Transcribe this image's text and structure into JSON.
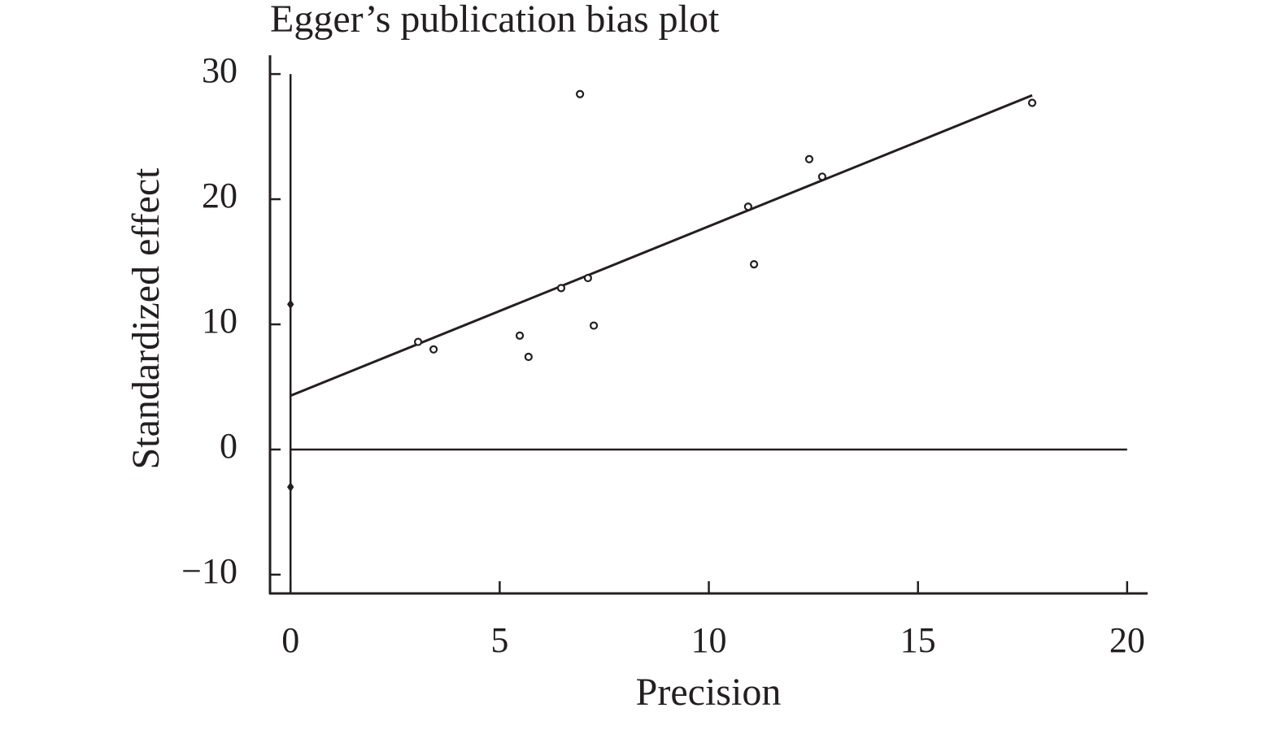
{
  "chart_data": {
    "type": "scatter",
    "title": "Egger’s publication bias plot",
    "x_label": "Precision",
    "y_label": "Standardized effect",
    "x": [
      3.05,
      3.42,
      5.48,
      5.69,
      6.47,
      6.92,
      7.11,
      7.25,
      10.94,
      11.08,
      12.4,
      12.71,
      17.73
    ],
    "values": [
      8.6,
      8.0,
      9.1,
      7.4,
      12.9,
      28.4,
      13.7,
      9.9,
      19.4,
      14.8,
      23.2,
      21.8,
      27.7
    ],
    "fit_line": {
      "x": [
        0,
        17.73
      ],
      "values": [
        4.3,
        28.3
      ]
    },
    "intercept_ci": [
      11.6,
      -3.0
    ],
    "color": "#231f20",
    "xlim": [
      -0.49,
      20.47
    ],
    "ylim": [
      -11.5,
      31.5
    ],
    "xticks": [
      0,
      5,
      10,
      15,
      20
    ],
    "yticks": [
      {
        "value": -10,
        "label": "−10"
      },
      0,
      10,
      20,
      30
    ]
  }
}
